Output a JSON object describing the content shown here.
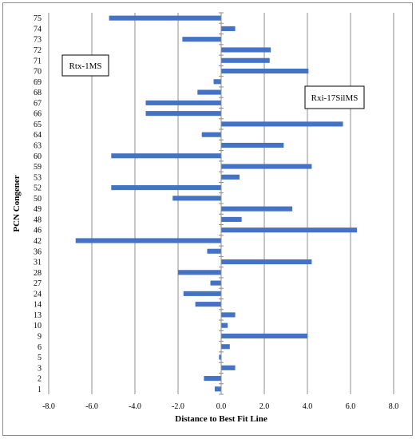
{
  "chart_data": {
    "type": "bar",
    "orientation": "horizontal",
    "title": "",
    "xlabel": "Distance to Best Fit Line",
    "ylabel": "PCN Congener",
    "xlim": [
      -8.0,
      8.0
    ],
    "xticks": [
      "-8.0",
      "-6.0",
      "-4.0",
      "-2.0",
      "0.0",
      "2.0",
      "4.0",
      "6.0",
      "8.0"
    ],
    "grid": "vertical major gridlines",
    "bar_color": "#4472c4",
    "annotations": [
      {
        "text": "Rtx-1MS",
        "side": "left"
      },
      {
        "text": "Rxi-17SilMS",
        "side": "right"
      }
    ],
    "categories": [
      "1",
      "2",
      "3",
      "5",
      "6",
      "9",
      "10",
      "13",
      "14",
      "24",
      "27",
      "28",
      "31",
      "36",
      "42",
      "46",
      "48",
      "49",
      "50",
      "52",
      "53",
      "59",
      "60",
      "63",
      "64",
      "65",
      "66",
      "67",
      "68",
      "69",
      "70",
      "71",
      "72",
      "73",
      "74",
      "75"
    ],
    "values": [
      -0.3,
      -0.8,
      0.65,
      -0.1,
      0.4,
      4.0,
      0.3,
      0.65,
      -1.2,
      -1.75,
      -0.5,
      -2.0,
      4.2,
      -0.65,
      -6.75,
      6.3,
      0.95,
      3.3,
      -2.25,
      -5.1,
      0.85,
      4.2,
      -5.1,
      2.9,
      -0.9,
      5.65,
      -3.5,
      -3.5,
      -1.1,
      -0.35,
      4.05,
      2.25,
      2.3,
      -1.8,
      0.65,
      -5.2
    ]
  }
}
